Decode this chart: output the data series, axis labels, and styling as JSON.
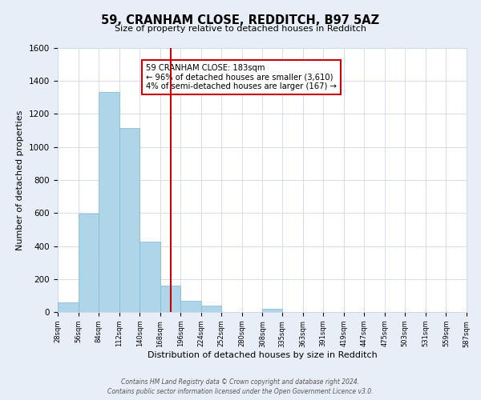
{
  "title": "59, CRANHAM CLOSE, REDDITCH, B97 5AZ",
  "subtitle": "Size of property relative to detached houses in Redditch",
  "xlabel": "Distribution of detached houses by size in Redditch",
  "ylabel": "Number of detached properties",
  "bar_edges": [
    28,
    56,
    84,
    112,
    140,
    168,
    196,
    224,
    252,
    280,
    308,
    335,
    363,
    391,
    419,
    447,
    475,
    503,
    531,
    559,
    587
  ],
  "bar_heights": [
    60,
    595,
    1335,
    1115,
    425,
    160,
    70,
    40,
    0,
    0,
    20,
    0,
    0,
    0,
    0,
    0,
    0,
    0,
    0,
    0
  ],
  "bar_color": "#aed6e8",
  "bar_edgecolor": "#7bb8d4",
  "vline_x": 183,
  "vline_color": "#cc0000",
  "annotation_lines": [
    "59 CRANHAM CLOSE: 183sqm",
    "← 96% of detached houses are smaller (3,610)",
    "4% of semi-detached houses are larger (167) →"
  ],
  "ylim": [
    0,
    1600
  ],
  "yticks": [
    0,
    200,
    400,
    600,
    800,
    1000,
    1200,
    1400,
    1600
  ],
  "tick_labels": [
    "28sqm",
    "56sqm",
    "84sqm",
    "112sqm",
    "140sqm",
    "168sqm",
    "196sqm",
    "224sqm",
    "252sqm",
    "280sqm",
    "308sqm",
    "335sqm",
    "363sqm",
    "391sqm",
    "419sqm",
    "447sqm",
    "475sqm",
    "503sqm",
    "531sqm",
    "559sqm",
    "587sqm"
  ],
  "footer_line1": "Contains HM Land Registry data © Crown copyright and database right 2024.",
  "footer_line2": "Contains public sector information licensed under the Open Government Licence v3.0.",
  "bg_color": "#e8eef8",
  "plot_bg_color": "#ffffff",
  "grid_color": "#d0d8e8"
}
